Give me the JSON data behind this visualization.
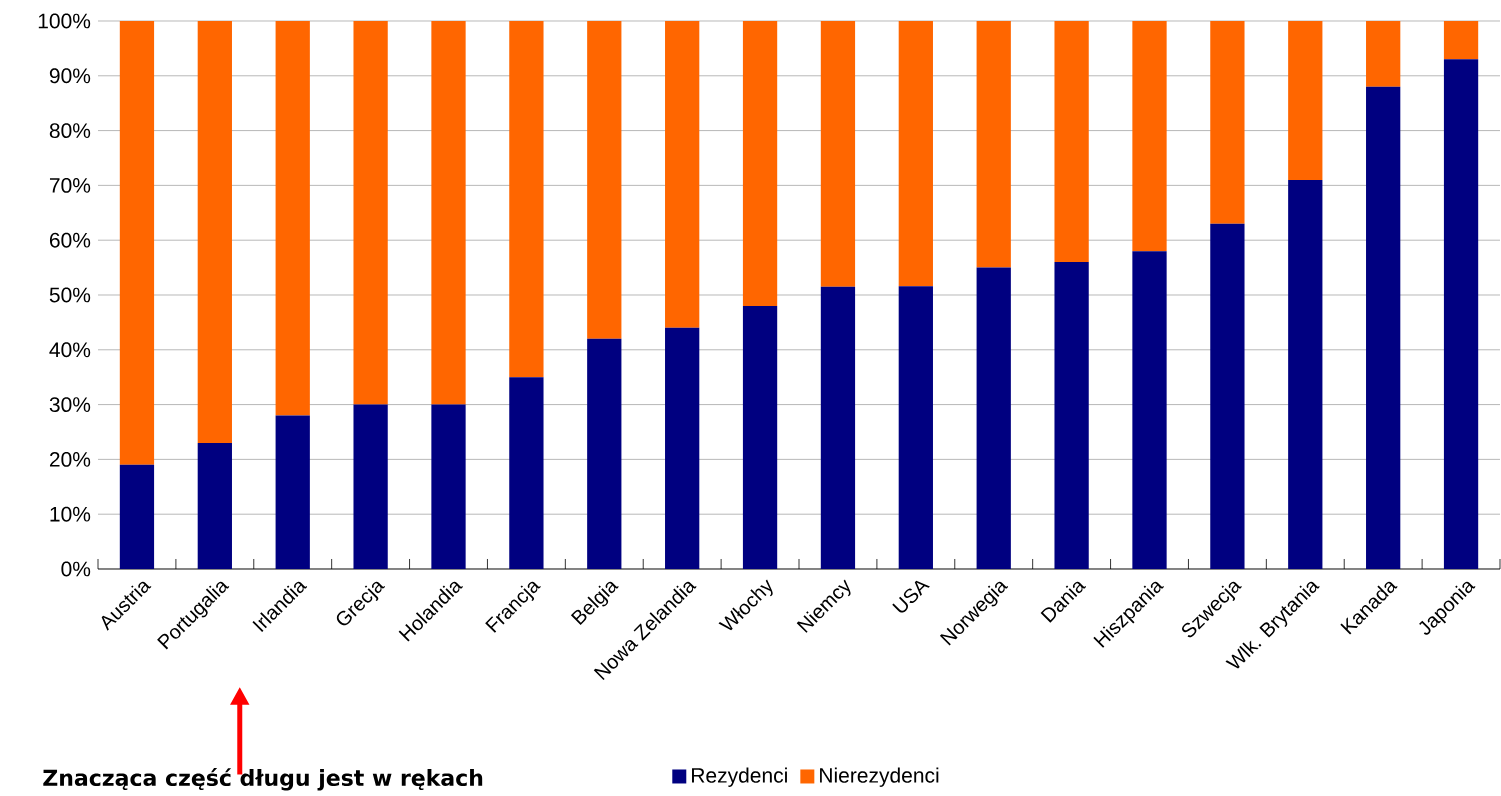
{
  "chart_data": {
    "type": "bar",
    "stacked": true,
    "categories": [
      "Austria",
      "Portugalia",
      "Irlandia",
      "Grecja",
      "Holandia",
      "Francja",
      "Belgia",
      "Nowa Zelandia",
      "Włochy",
      "Niemcy",
      "USA",
      "Norwegia",
      "Dania",
      "Hiszpania",
      "Szwecja",
      "Wlk. Brytania",
      "Kanada",
      "Japonia"
    ],
    "series": [
      {
        "name": "Rezydenci",
        "color": "#000080",
        "values": [
          19,
          23,
          28,
          30,
          30,
          35,
          42,
          44,
          48,
          51.5,
          51.6,
          55,
          56,
          58,
          63,
          71,
          88,
          93
        ]
      },
      {
        "name": "Nierezydenci",
        "color": "#ff6600",
        "values": [
          81,
          77,
          72,
          70,
          70,
          65,
          58,
          56,
          52,
          48.5,
          48.4,
          45,
          44,
          42,
          37,
          29,
          12,
          7
        ]
      }
    ],
    "ylim": [
      0,
      100
    ],
    "yticks": [
      {
        "value": 0,
        "label": "0%"
      },
      {
        "value": 10,
        "label": "10%"
      },
      {
        "value": 20,
        "label": "20%"
      },
      {
        "value": 30,
        "label": "30%"
      },
      {
        "value": 40,
        "label": "40%"
      },
      {
        "value": 50,
        "label": "50%"
      },
      {
        "value": 60,
        "label": "60%"
      },
      {
        "value": 70,
        "label": "70%"
      },
      {
        "value": 80,
        "label": "80%"
      },
      {
        "value": 90,
        "label": "90%"
      },
      {
        "value": 100,
        "label": "100%"
      }
    ],
    "grid": "y",
    "legend": "bottom",
    "annotations": [
      "Znacząca część długu jest w rękach"
    ]
  }
}
